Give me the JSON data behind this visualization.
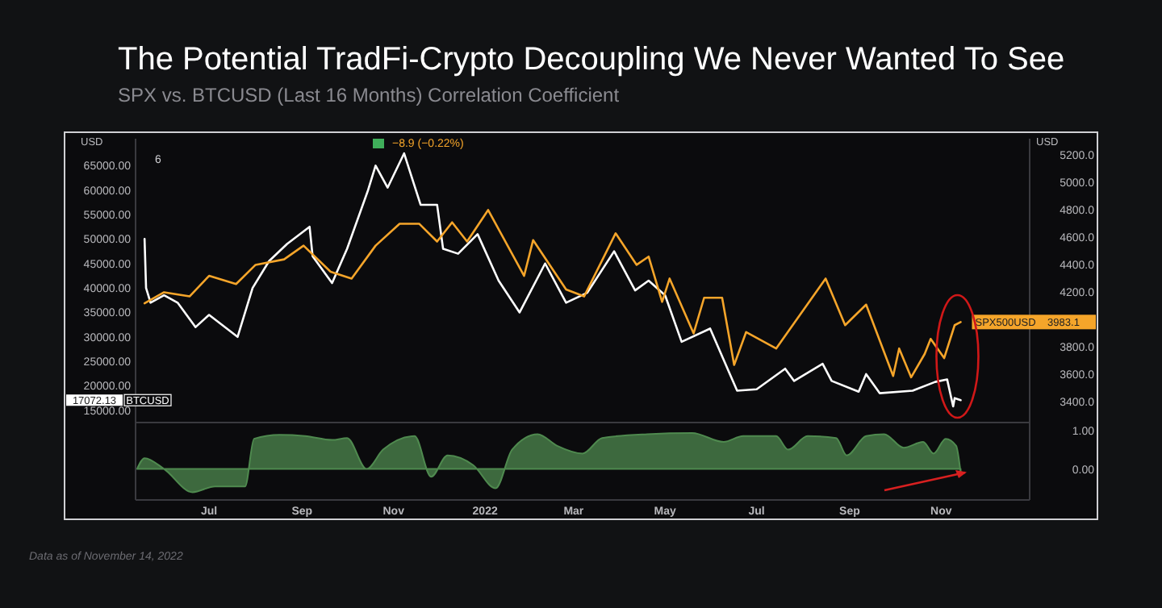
{
  "chart_data": [
    {
      "type": "line",
      "title": "The Potential TradFi-Crypto Decoupling We Never Wanted To See",
      "subtitle": "SPX vs. BTCUSD (Last 16 Months) Correlation Coefficient",
      "ylabel": "USD",
      "y2label": "USD",
      "tick_labels": "y",
      "xlim": [
        "2021-05-13",
        "2022-12-30"
      ],
      "ylim": [
        12500,
        70500
      ],
      "yticks": [
        {
          "value": 15000,
          "label": "15000.00"
        },
        {
          "value": 20000,
          "label": "20000.00"
        },
        {
          "value": 25000,
          "label": "25000.00"
        },
        {
          "value": 30000,
          "label": "30000.00"
        },
        {
          "value": 35000,
          "label": "35000.00"
        },
        {
          "value": 40000,
          "label": "40000.00"
        },
        {
          "value": 45000,
          "label": "45000.00"
        },
        {
          "value": 50000,
          "label": "50000.00"
        },
        {
          "value": 55000,
          "label": "55000.00"
        },
        {
          "value": 60000,
          "label": "60000.00"
        },
        {
          "value": 65000,
          "label": "65000.00"
        }
      ],
      "y2lim": [
        3250,
        5320
      ],
      "y2ticks": [
        {
          "value": 3400,
          "label": "3400.0"
        },
        {
          "value": 3600,
          "label": "3600.0"
        },
        {
          "value": 3800,
          "label": "3800.0"
        },
        {
          "value": 4200,
          "label": "4200.0"
        },
        {
          "value": 4400,
          "label": "4400.0"
        },
        {
          "value": 4600,
          "label": "4600.0"
        },
        {
          "value": 4800,
          "label": "4800.0"
        },
        {
          "value": 5000,
          "label": "5000.0"
        },
        {
          "value": 5200,
          "label": "5200.0"
        }
      ],
      "annotations": [
        "−8.9 (−0.22%)",
        "6",
        "17072.13",
        "3983.1"
      ],
      "series": [
        {
          "name": "BTCUSD",
          "color": "#ffffff",
          "x": [
            "2021-05-19",
            "2021-05-20",
            "2021-05-23",
            "2021-06-01",
            "2021-06-10",
            "2021-06-22",
            "2021-07-01",
            "2021-07-20",
            "2021-07-30",
            "2021-08-10",
            "2021-08-22",
            "2021-09-06",
            "2021-09-08",
            "2021-09-21",
            "2021-10-01",
            "2021-10-15",
            "2021-10-20",
            "2021-10-28",
            "2021-11-08",
            "2021-11-19",
            "2021-11-30",
            "2021-12-04",
            "2021-12-14",
            "2021-12-27",
            "2022-01-10",
            "2022-01-24",
            "2022-02-10",
            "2022-02-24",
            "2022-03-10",
            "2022-03-28",
            "2022-04-11",
            "2022-04-20",
            "2022-05-01",
            "2022-05-12",
            "2022-05-31",
            "2022-06-13",
            "2022-06-18",
            "2022-07-01",
            "2022-07-20",
            "2022-07-26",
            "2022-08-14",
            "2022-08-20",
            "2022-09-07",
            "2022-09-12",
            "2022-09-21",
            "2022-10-13",
            "2022-10-28",
            "2022-11-05",
            "2022-11-09",
            "2022-11-10",
            "2022-11-14"
          ],
          "values": [
            50000,
            40000,
            37000,
            38500,
            37000,
            32000,
            34500,
            30000,
            40000,
            45500,
            49000,
            52500,
            46500,
            41000,
            48000,
            60000,
            65000,
            60500,
            67500,
            57000,
            57000,
            48000,
            47000,
            51000,
            41500,
            35000,
            45000,
            37000,
            39000,
            47500,
            39500,
            41500,
            38500,
            29000,
            31700,
            22500,
            19000,
            19300,
            23500,
            21000,
            24500,
            21000,
            18800,
            22400,
            18500,
            19000,
            20800,
            21300,
            15800,
            17500,
            17072.13
          ]
        },
        {
          "name": "SPX500USD",
          "color": "#f5a52a",
          "axis": "y2",
          "x": [
            "2021-05-19",
            "2021-06-01",
            "2021-06-18",
            "2021-07-01",
            "2021-07-19",
            "2021-08-01",
            "2021-08-20",
            "2021-09-02",
            "2021-09-20",
            "2021-10-04",
            "2021-10-20",
            "2021-11-05",
            "2021-11-18",
            "2021-11-30",
            "2021-12-10",
            "2021-12-20",
            "2022-01-03",
            "2022-01-27",
            "2022-02-02",
            "2022-02-24",
            "2022-03-08",
            "2022-03-29",
            "2022-04-12",
            "2022-04-20",
            "2022-04-29",
            "2022-05-04",
            "2022-05-20",
            "2022-05-27",
            "2022-06-08",
            "2022-06-16",
            "2022-06-24",
            "2022-07-14",
            "2022-08-16",
            "2022-08-29",
            "2022-09-12",
            "2022-09-30",
            "2022-10-04",
            "2022-10-12",
            "2022-10-21",
            "2022-10-25",
            "2022-11-03",
            "2022-11-10",
            "2022-11-14"
          ],
          "values": [
            4120,
            4200,
            4170,
            4320,
            4260,
            4400,
            4440,
            4540,
            4350,
            4300,
            4540,
            4700,
            4700,
            4570,
            4710,
            4570,
            4800,
            4320,
            4580,
            4220,
            4170,
            4630,
            4400,
            4460,
            4130,
            4300,
            3900,
            4160,
            4160,
            3670,
            3910,
            3790,
            4300,
            3960,
            4110,
            3590,
            3790,
            3580,
            3750,
            3860,
            3720,
            3960,
            3983.1
          ]
        }
      ]
    },
    {
      "type": "area",
      "xlim": [
        "2021-05-13",
        "2022-12-30"
      ],
      "xticks": [
        {
          "value": "2021-07-01",
          "label": "Jul"
        },
        {
          "value": "2021-09-01",
          "label": "Sep"
        },
        {
          "value": "2021-11-01",
          "label": "Nov"
        },
        {
          "value": "2022-01-01",
          "label": "2022"
        },
        {
          "value": "2022-03-01",
          "label": "Mar"
        },
        {
          "value": "2022-05-01",
          "label": "May"
        },
        {
          "value": "2022-07-01",
          "label": "Jul"
        },
        {
          "value": "2022-09-01",
          "label": "Sep"
        },
        {
          "value": "2022-11-01",
          "label": "Nov"
        }
      ],
      "ylim": [
        -0.8,
        1.2
      ],
      "yticks": [
        {
          "value": 0,
          "label": "0.00"
        },
        {
          "value": 1,
          "label": "1.00"
        }
      ],
      "annotations": [
        "Data as of November 14, 2022"
      ],
      "series": [
        {
          "color": "#4f8a4f",
          "x": [
            "2021-05-14",
            "2021-05-19",
            "2021-06-01",
            "2021-06-20",
            "2021-07-05",
            "2021-07-25",
            "2021-07-31",
            "2021-08-17",
            "2021-09-03",
            "2021-09-21",
            "2021-10-01",
            "2021-10-14",
            "2021-10-25",
            "2021-11-15",
            "2021-11-26",
            "2021-12-07",
            "2021-12-24",
            "2022-01-08",
            "2022-01-19",
            "2022-02-05",
            "2022-02-18",
            "2022-03-07",
            "2022-03-20",
            "2022-04-19",
            "2022-05-19",
            "2022-06-09",
            "2022-06-22",
            "2022-07-14",
            "2022-07-22",
            "2022-08-04",
            "2022-08-23",
            "2022-08-30",
            "2022-09-12",
            "2022-09-24",
            "2022-10-07",
            "2022-10-20",
            "2022-10-27",
            "2022-11-04",
            "2022-11-11",
            "2022-11-14"
          ],
          "values": [
            0,
            0.28,
            0,
            -0.6,
            -0.45,
            -0.45,
            0.78,
            0.88,
            0.85,
            0.75,
            0.8,
            0,
            0.5,
            0.85,
            -0.2,
            0.35,
            0.1,
            -0.5,
            0.5,
            0.9,
            0.6,
            0.4,
            0.8,
            0.9,
            0.93,
            0.7,
            0.85,
            0.85,
            0.5,
            0.85,
            0.8,
            0.35,
            0.85,
            0.9,
            0.55,
            0.7,
            0.4,
            0.78,
            0.6,
            -0.1
          ]
        }
      ]
    }
  ]
}
